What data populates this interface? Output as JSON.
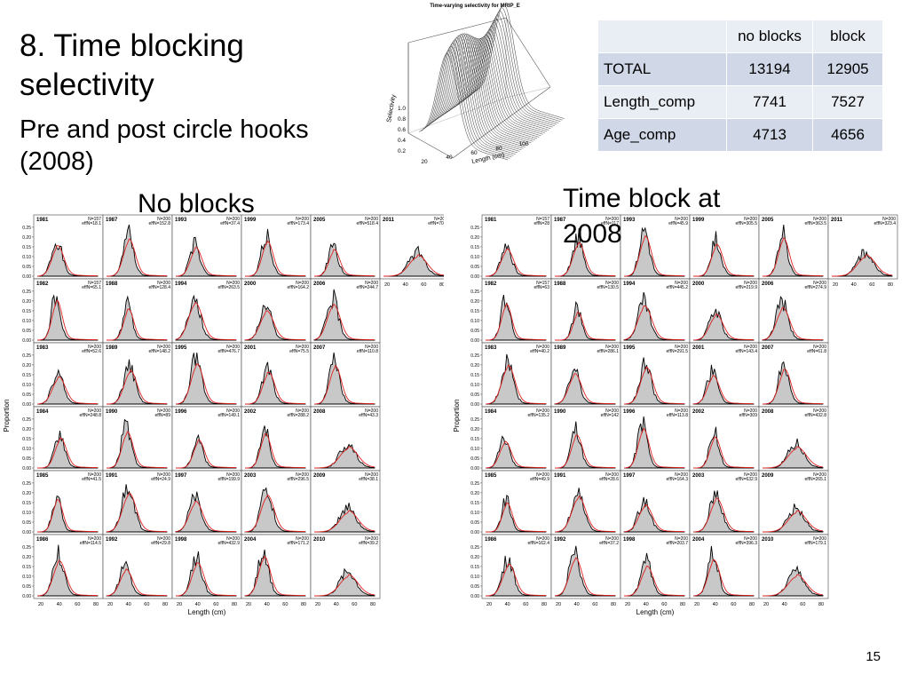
{
  "slide": {
    "title": "8. Time blocking selectivity",
    "subtitle": "Pre and post circle hooks (2008)",
    "label_no_blocks": "No blocks",
    "label_time_block": "Time block at 2008",
    "page_number": "15"
  },
  "table": {
    "headers": [
      "",
      "no blocks",
      "block"
    ],
    "rows": [
      {
        "label": "TOTAL",
        "no_blocks": "13194",
        "block": "12905"
      },
      {
        "label": "Length_comp",
        "no_blocks": "7741",
        "block": "7527"
      },
      {
        "label": "Age_comp",
        "no_blocks": "4713",
        "block": "4656"
      }
    ]
  },
  "surface_plot": {
    "title": "Time-varying selectivity for MRIP_E",
    "z_label": "Selectivity",
    "x_label": "Length (cm)",
    "z_ticks": [
      "0.2",
      "0.4",
      "0.6",
      "0.8",
      "1.0"
    ],
    "x_ticks": [
      "20",
      "40",
      "60",
      "80",
      "100"
    ]
  },
  "chart_data": [
    {
      "type": "line",
      "name": "no-blocks-panels",
      "ylabel": "Proportion",
      "xlabel": "Length (cm)",
      "yticks": [
        "0.00",
        "0.05",
        "0.10",
        "0.15",
        "0.20",
        "0.25"
      ],
      "xticks": [
        "20",
        "40",
        "60",
        "80"
      ],
      "panels": [
        {
          "year": "1981",
          "n": "N=157",
          "eff": "effN=18.1"
        },
        {
          "year": "1987",
          "n": "N=200",
          "eff": "effN=152.8"
        },
        {
          "year": "1993",
          "n": "N=200",
          "eff": "effN=37.4"
        },
        {
          "year": "1999",
          "n": "N=200",
          "eff": "effN=173.4"
        },
        {
          "year": "2005",
          "n": "N=200",
          "eff": "effN=518.4"
        },
        {
          "year": "2011",
          "n": "N=200",
          "eff": "effN=70.7"
        },
        {
          "year": "1982",
          "n": "N=157",
          "eff": "effN=65.1"
        },
        {
          "year": "1988",
          "n": "N=200",
          "eff": "effN=128.4"
        },
        {
          "year": "1994",
          "n": "N=200",
          "eff": "effN=263.5"
        },
        {
          "year": "2000",
          "n": "N=200",
          "eff": "effN=164.2"
        },
        {
          "year": "2006",
          "n": "N=200",
          "eff": "effN=244.7"
        },
        {
          "year": "1983",
          "n": "N=200",
          "eff": "effN=52.6"
        },
        {
          "year": "1989",
          "n": "N=200",
          "eff": "effN=148.2"
        },
        {
          "year": "1995",
          "n": "N=200",
          "eff": "effN=476.7"
        },
        {
          "year": "2001",
          "n": "N=200",
          "eff": "effN=75.5"
        },
        {
          "year": "2007",
          "n": "N=200",
          "eff": "effN=110.8"
        },
        {
          "year": "1984",
          "n": "N=200",
          "eff": "effN=248.8"
        },
        {
          "year": "1990",
          "n": "N=200",
          "eff": "effN=89"
        },
        {
          "year": "1996",
          "n": "N=200",
          "eff": "effN=149.1"
        },
        {
          "year": "2002",
          "n": "N=200",
          "eff": "effN=288.2"
        },
        {
          "year": "2008",
          "n": "N=200",
          "eff": "effN=43.3"
        },
        {
          "year": "1985",
          "n": "N=200",
          "eff": "effN=41.5"
        },
        {
          "year": "1991",
          "n": "N=200",
          "eff": "effN=24.9"
        },
        {
          "year": "1997",
          "n": "N=200",
          "eff": "effN=199.9"
        },
        {
          "year": "2003",
          "n": "N=200",
          "eff": "effN=296.5"
        },
        {
          "year": "2009",
          "n": "N=200",
          "eff": "effN=38.1"
        },
        {
          "year": "1986",
          "n": "N=200",
          "eff": "effN=114.5"
        },
        {
          "year": "1992",
          "n": "N=200",
          "eff": "effN=29.8"
        },
        {
          "year": "1998",
          "n": "N=200",
          "eff": "effN=432.9"
        },
        {
          "year": "2004",
          "n": "N=200",
          "eff": "effN=171.2"
        },
        {
          "year": "2010",
          "n": "N=200",
          "eff": "effN=39.2"
        }
      ]
    },
    {
      "type": "line",
      "name": "time-block-panels",
      "ylabel": "Proportion",
      "xlabel": "Length (cm)",
      "yticks": [
        "0.00",
        "0.05",
        "0.10",
        "0.15",
        "0.20",
        "0.25"
      ],
      "xticks": [
        "20",
        "40",
        "60",
        "80"
      ],
      "panels": [
        {
          "year": "1981",
          "n": "N=157",
          "eff": "effN=28"
        },
        {
          "year": "1987",
          "n": "N=200",
          "eff": "effN=117"
        },
        {
          "year": "1993",
          "n": "N=200",
          "eff": "effN=45.9"
        },
        {
          "year": "1999",
          "n": "N=200",
          "eff": "effN=305.5"
        },
        {
          "year": "2005",
          "n": "N=200",
          "eff": "effN=363.5"
        },
        {
          "year": "2011",
          "n": "N=200",
          "eff": "effN=323.4"
        },
        {
          "year": "1982",
          "n": "N=157",
          "eff": "effN=63"
        },
        {
          "year": "1988",
          "n": "N=200",
          "eff": "effN=130.5"
        },
        {
          "year": "1994",
          "n": "N=200",
          "eff": "effN=445.2"
        },
        {
          "year": "2000",
          "n": "N=200",
          "eff": "effN=219.9"
        },
        {
          "year": "2006",
          "n": "N=200",
          "eff": "effN=274.9"
        },
        {
          "year": "1983",
          "n": "N=200",
          "eff": "effN=40.2"
        },
        {
          "year": "1989",
          "n": "N=200",
          "eff": "effN=286.1"
        },
        {
          "year": "1995",
          "n": "N=200",
          "eff": "effN=291.5"
        },
        {
          "year": "2001",
          "n": "N=200",
          "eff": "effN=143.4"
        },
        {
          "year": "2007",
          "n": "N=200",
          "eff": "effN=61.8"
        },
        {
          "year": "1984",
          "n": "N=200",
          "eff": "effN=135.2"
        },
        {
          "year": "1990",
          "n": "N=200",
          "eff": "effN=142"
        },
        {
          "year": "1996",
          "n": "N=200",
          "eff": "effN=113.8"
        },
        {
          "year": "2002",
          "n": "N=200",
          "eff": "effN=309"
        },
        {
          "year": "2008",
          "n": "N=200",
          "eff": "effN=432.8"
        },
        {
          "year": "1985",
          "n": "N=200",
          "eff": "effN=49.9"
        },
        {
          "year": "1991",
          "n": "N=200",
          "eff": "effN=28.6"
        },
        {
          "year": "1997",
          "n": "N=200",
          "eff": "effN=164.3"
        },
        {
          "year": "2003",
          "n": "N=200",
          "eff": "effN=632.9"
        },
        {
          "year": "2009",
          "n": "N=200",
          "eff": "effN=265.1"
        },
        {
          "year": "1986",
          "n": "N=200",
          "eff": "effN=162.4"
        },
        {
          "year": "1992",
          "n": "N=200",
          "eff": "effN=37.2"
        },
        {
          "year": "1998",
          "n": "N=200",
          "eff": "effN=203.7"
        },
        {
          "year": "2004",
          "n": "N=200",
          "eff": "effN=396.3"
        },
        {
          "year": "2010",
          "n": "N=200",
          "eff": "effN=179.1"
        }
      ]
    }
  ],
  "colors": {
    "observed": "#000000",
    "fill": "#c8c8c8",
    "expected": "#e0201e",
    "table_light": "#e9edf4",
    "table_dark": "#d0d8e8"
  }
}
